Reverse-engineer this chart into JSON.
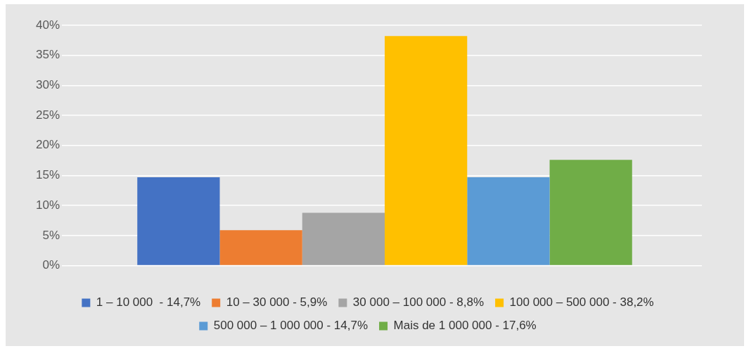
{
  "chart_data": {
    "type": "bar",
    "categories": [
      null
    ],
    "series": [
      {
        "name": "1 – 10 000  - 14,7%",
        "color": "#4472c4",
        "values": [
          14.7
        ]
      },
      {
        "name": "10 – 30 000 - 5,9%",
        "color": "#ed7d31",
        "values": [
          5.9
        ]
      },
      {
        "name": "30 000 – 100 000 - 8,8%",
        "color": "#a5a5a5",
        "values": [
          8.8
        ]
      },
      {
        "name": "100 000 – 500 000 - 38,2%",
        "color": "#ffc000",
        "values": [
          38.2
        ]
      },
      {
        "name": "500 000 – 1 000 000 - 14,7%",
        "color": "#5b9bd5",
        "values": [
          14.7
        ]
      },
      {
        "name": "Mais de 1 000 000 - 17,6%",
        "color": "#70ad47",
        "values": [
          17.6
        ]
      }
    ],
    "ylim": [
      0,
      40
    ],
    "yticks": [
      {
        "value": 0,
        "label": "0%"
      },
      {
        "value": 5,
        "label": "5%"
      },
      {
        "value": 10,
        "label": "10%"
      },
      {
        "value": 15,
        "label": "15%"
      },
      {
        "value": 20,
        "label": "20%"
      },
      {
        "value": 25,
        "label": "25%"
      },
      {
        "value": 30,
        "label": "30%"
      },
      {
        "value": 35,
        "label": "35%"
      },
      {
        "value": 40,
        "label": "40%"
      }
    ],
    "grid": "y",
    "legend": "bottom"
  }
}
